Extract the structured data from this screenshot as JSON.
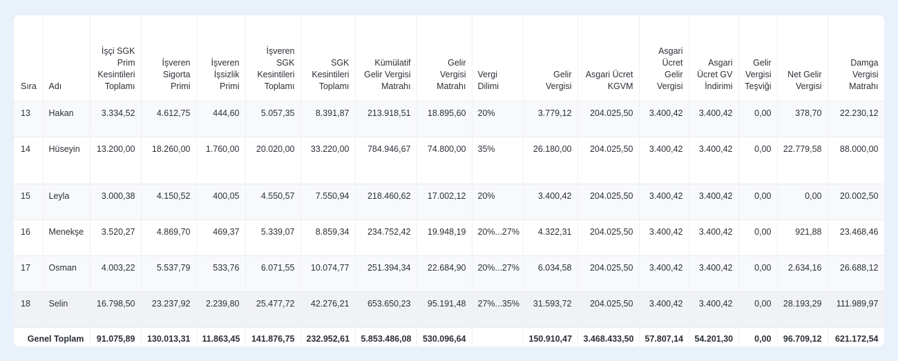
{
  "headers": [
    "Sıra",
    "Adı",
    "İşçi SGK Prim Kesintileri Toplamı",
    "İşveren Sigorta Primi",
    "İşveren İşsizlik Primi",
    "İşveren SGK Kesintileri Toplamı",
    "SGK Kesintileri Toplamı",
    "Kümülatif Gelir Vergisi Matrahı",
    "Gelir Vergisi Matrahı",
    "Vergi Dilimi",
    "Gelir Vergisi",
    "Asgari Ücret KGVM",
    "Asgari Ücret Gelir Vergisi",
    "Asgari Ücret GV İndirimi",
    "Gelir Vergisi Teşviği",
    "Net Gelir Vergisi",
    "Damga Vergisi Matrahı"
  ],
  "rows": [
    [
      "13",
      "Hakan",
      "3.334,52",
      "4.612,75",
      "444,60",
      "5.057,35",
      "8.391,87",
      "213.918,51",
      "18.895,60",
      "20%",
      "3.779,12",
      "204.025,50",
      "3.400,42",
      "3.400,42",
      "0,00",
      "378,70",
      "22.230,12"
    ],
    [
      "14",
      "Hüseyin",
      "13.200,00",
      "18.260,00",
      "1.760,00",
      "20.020,00",
      "33.220,00",
      "784.946,67",
      "74.800,00",
      "35%",
      "26.180,00",
      "204.025,50",
      "3.400,42",
      "3.400,42",
      "0,00",
      "22.779,58",
      "88.000,00"
    ],
    [
      "15",
      "Leyla",
      "3.000,38",
      "4.150,52",
      "400,05",
      "4.550,57",
      "7.550,94",
      "218.460,62",
      "17.002,12",
      "20%",
      "3.400,42",
      "204.025,50",
      "3.400,42",
      "3.400,42",
      "0,00",
      "0,00",
      "20.002,50"
    ],
    [
      "16",
      "Menekşe",
      "3.520,27",
      "4.869,70",
      "469,37",
      "5.339,07",
      "8.859,34",
      "234.752,42",
      "19.948,19",
      "20%...27%",
      "4.322,31",
      "204.025,50",
      "3.400,42",
      "3.400,42",
      "0,00",
      "921,88",
      "23.468,46"
    ],
    [
      "17",
      "Osman",
      "4.003,22",
      "5.537,79",
      "533,76",
      "6.071,55",
      "10.074,77",
      "251.394,34",
      "22.684,90",
      "20%...27%",
      "6.034,58",
      "204.025,50",
      "3.400,42",
      "3.400,42",
      "0,00",
      "2.634,16",
      "26.688,12"
    ],
    [
      "18",
      "Selin",
      "16.798,50",
      "23.237,92",
      "2.239,80",
      "25.477,72",
      "42.276,21",
      "653.650,23",
      "95.191,48",
      "27%...35%",
      "31.593,72",
      "204.025,50",
      "3.400,42",
      "3.400,42",
      "0,00",
      "28.193,29",
      "111.989,97"
    ]
  ],
  "totals": {
    "label": "Genel Toplam",
    "values": [
      "91.075,89",
      "130.013,31",
      "11.863,45",
      "141.876,75",
      "232.952,61",
      "5.853.486,08",
      "530.096,64",
      "",
      "150.910,47",
      "3.468.433,50",
      "57.807,14",
      "54.201,30",
      "0,00",
      "96.709,12",
      "621.172,54"
    ]
  }
}
